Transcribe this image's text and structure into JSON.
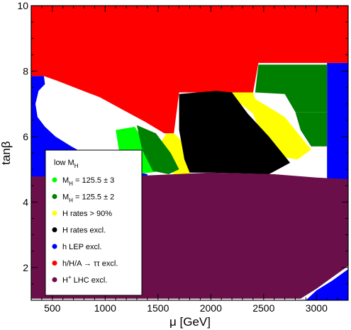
{
  "chart_data": {
    "type": "scatter",
    "xlabel": "μ [GeV]",
    "ylabel": "tanβ",
    "xlim": [
      300,
      3300
    ],
    "ylim": [
      1,
      10
    ],
    "xticks": [
      500,
      1000,
      1500,
      2000,
      2500,
      3000
    ],
    "yticks": [
      2,
      4,
      6,
      8,
      10
    ],
    "legend_position": "left-center",
    "legend_title": {
      "main": "low M",
      "sub": "H"
    },
    "regions": [
      {
        "id": "h-lep-excl",
        "color": "#0000ff",
        "polygons": [
          [
            [
              300,
              7.85
            ],
            [
              420,
              7.85
            ],
            [
              430,
              7.6
            ],
            [
              370,
              7.4
            ],
            [
              340,
              7.0
            ],
            [
              360,
              6.6
            ],
            [
              430,
              6.3
            ],
            [
              530,
              6.0
            ],
            [
              680,
              5.7
            ],
            [
              850,
              5.4
            ],
            [
              1050,
              5.15
            ],
            [
              1250,
              4.95
            ],
            [
              1400,
              4.85
            ],
            [
              1400,
              4.7
            ],
            [
              300,
              4.7
            ]
          ],
          [
            [
              3100,
              8.25
            ],
            [
              3300,
              8.25
            ],
            [
              3300,
              4.7
            ],
            [
              3100,
              4.7
            ]
          ],
          [
            [
              2900,
              1.0
            ],
            [
              3300,
              1.0
            ],
            [
              3300,
              1.95
            ],
            [
              3150,
              1.6
            ],
            [
              3000,
              1.3
            ]
          ]
        ]
      },
      {
        "id": "htautau-excl",
        "color": "#ff0000",
        "polygons": [
          [
            [
              300,
              10
            ],
            [
              3300,
              10
            ],
            [
              3300,
              8.25
            ],
            [
              2450,
              8.25
            ],
            [
              2400,
              7.35
            ],
            [
              2150,
              7.35
            ],
            [
              1700,
              7.35
            ],
            [
              1650,
              6.1
            ],
            [
              1560,
              6.1
            ],
            [
              1380,
              6.45
            ],
            [
              1150,
              6.85
            ],
            [
              950,
              7.2
            ],
            [
              750,
              7.45
            ],
            [
              550,
              7.7
            ],
            [
              420,
              7.85
            ],
            [
              300,
              7.85
            ]
          ]
        ]
      },
      {
        "id": "h-rates-above-90",
        "color": "#ffff00",
        "polygons": [
          [
            [
              2150,
              7.35
            ],
            [
              2400,
              7.35
            ],
            [
              2420,
              7.15
            ],
            [
              2700,
              6.6
            ],
            [
              2950,
              5.6
            ],
            [
              2820,
              5.3
            ],
            [
              2550,
              5.45
            ],
            [
              2400,
              6.7
            ]
          ],
          [
            [
              1580,
              6.1
            ],
            [
              1650,
              6.1
            ],
            [
              1750,
              5.8
            ],
            [
              1820,
              5.2
            ],
            [
              1800,
              4.85
            ],
            [
              1650,
              4.85
            ],
            [
              1560,
              5.3
            ],
            [
              1500,
              5.7
            ]
          ]
        ]
      },
      {
        "id": "mh-125.5-pm-3",
        "color": "#00ff00",
        "polygons": [
          [
            [
              1100,
              6.2
            ],
            [
              1280,
              6.3
            ],
            [
              1480,
              5.3
            ],
            [
              1550,
              4.95
            ],
            [
              1300,
              4.85
            ],
            [
              1150,
              5.2
            ]
          ]
        ]
      },
      {
        "id": "mh-125.5-pm-2",
        "color": "#008000",
        "polygons": [
          [
            [
              2450,
              8.2
            ],
            [
              3100,
              8.2
            ],
            [
              3100,
              6.75
            ],
            [
              2800,
              6.75
            ],
            [
              2700,
              7.3
            ],
            [
              2420,
              7.35
            ]
          ],
          [
            [
              1300,
              6.35
            ],
            [
              1480,
              6.1
            ],
            [
              1620,
              5.5
            ],
            [
              1700,
              5.0
            ],
            [
              1600,
              4.85
            ],
            [
              1450,
              4.95
            ],
            [
              1350,
              5.6
            ]
          ],
          [
            [
              2800,
              6.75
            ],
            [
              3100,
              6.75
            ],
            [
              3100,
              5.7
            ],
            [
              2950,
              5.7
            ],
            [
              2850,
              6.2
            ]
          ]
        ]
      },
      {
        "id": "h-rates-excl",
        "color": "#000000",
        "polygons": [
          [
            [
              1700,
              7.3
            ],
            [
              2050,
              7.4
            ],
            [
              2200,
              7.35
            ],
            [
              2350,
              6.7
            ],
            [
              2550,
              6.0
            ],
            [
              2750,
              5.2
            ],
            [
              2550,
              4.85
            ],
            [
              2000,
              4.9
            ],
            [
              1800,
              4.9
            ],
            [
              1750,
              5.3
            ],
            [
              1700,
              6.2
            ]
          ]
        ]
      },
      {
        "id": "hplus-lhc-excl",
        "color": "#6b0f4a",
        "polygons": [
          [
            [
              300,
              4.78
            ],
            [
              1300,
              4.8
            ],
            [
              2000,
              4.9
            ],
            [
              2600,
              4.85
            ],
            [
              3000,
              4.75
            ],
            [
              3300,
              4.7
            ],
            [
              3300,
              2.05
            ],
            [
              3150,
              1.7
            ],
            [
              3000,
              1.35
            ],
            [
              2850,
              1.05
            ],
            [
              300,
              1.05
            ]
          ]
        ]
      }
    ],
    "legend": [
      {
        "label_main": "M",
        "label_sub": "H",
        "label_rest": " = 125.5 ± 3",
        "color": "#00ff00"
      },
      {
        "label_main": "M",
        "label_sub": "H",
        "label_rest": " = 125.5 ± 2",
        "color": "#008000"
      },
      {
        "label_main": "H rates > 90%",
        "label_sub": "",
        "label_rest": "",
        "color": "#ffff00"
      },
      {
        "label_main": "H rates excl.",
        "label_sub": "",
        "label_rest": "",
        "color": "#000000"
      },
      {
        "label_main": "h LEP excl.",
        "label_sub": "",
        "label_rest": "",
        "color": "#0000ff"
      },
      {
        "label_main": "h/H/A  → ττ excl.",
        "label_sub": "",
        "label_rest": "",
        "color": "#ff0000"
      },
      {
        "label_main": "H",
        "label_sub": "",
        "label_sup": "+",
        "label_rest": " LHC excl.",
        "color": "#6b0f4a"
      }
    ]
  }
}
